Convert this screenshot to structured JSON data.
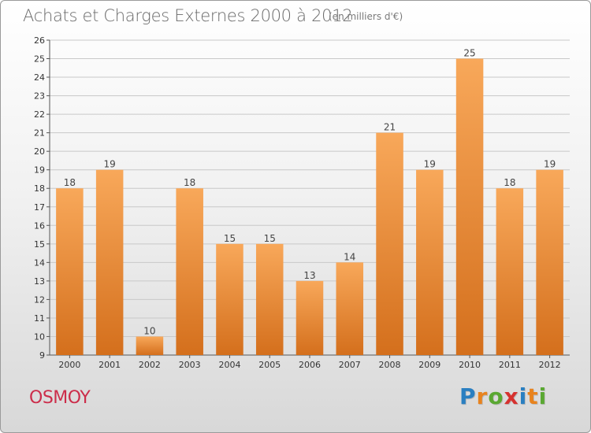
{
  "header": {
    "title": "Achats et Charges Externes 2000 à 2012",
    "subtitle": "(en milliers d'€)"
  },
  "footer": {
    "commune": "OSMOY",
    "logo_text": "Proxiti",
    "logo_colors": [
      "#2a7fc1",
      "#e8831e",
      "#5aa832",
      "#d6322f",
      "#2a7fc1",
      "#e8831e",
      "#5aa832"
    ]
  },
  "colors": {
    "bar_top": "#f8a85a",
    "bar_bottom": "#d46f1c",
    "grid": "#c8c8c8",
    "axis": "#555555",
    "commune_text": "#cc2d4a"
  },
  "chart_data": {
    "type": "bar",
    "title": "Achats et Charges Externes 2000 à 2012",
    "subtitle": "(en milliers d'€)",
    "xlabel": "",
    "ylabel": "",
    "categories": [
      "2000",
      "2001",
      "2002",
      "2003",
      "2004",
      "2005",
      "2006",
      "2007",
      "2008",
      "2009",
      "2010",
      "2011",
      "2012"
    ],
    "values": [
      18,
      19,
      10,
      18,
      15,
      15,
      13,
      14,
      21,
      19,
      25,
      18,
      19
    ],
    "ylim": [
      9,
      26
    ],
    "yticks": [
      9,
      10,
      11,
      12,
      13,
      14,
      15,
      16,
      17,
      18,
      19,
      20,
      21,
      22,
      23,
      24,
      25,
      26
    ],
    "grid": true,
    "data_labels": true
  }
}
